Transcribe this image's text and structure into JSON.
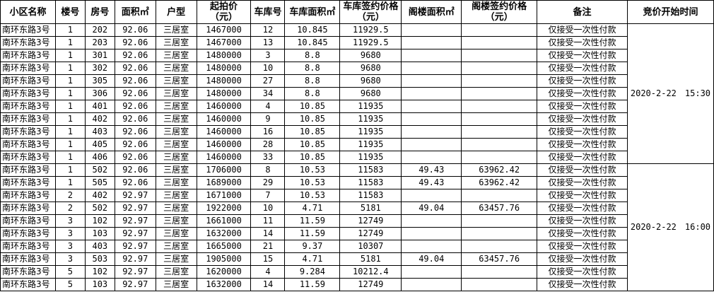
{
  "headers": [
    "小区名称",
    "楼号",
    "房号",
    "面积㎡",
    "户型",
    "起拍价\n（元）",
    "车库号",
    "车库面积㎡",
    "车库签约价格\n（元）",
    "阁楼面积㎡",
    "阁楼签约价格\n（元）",
    "备注",
    "竞价开始时间"
  ],
  "times": [
    "2020-2-22　15:30",
    "2020-2-22　16:00"
  ],
  "rows": [
    [
      "南环东路3号",
      "1",
      "202",
      "92.06",
      "三居室",
      "1467000",
      "12",
      "10.845",
      "11929.5",
      "",
      "",
      "仅接受一次性付款"
    ],
    [
      "南环东路3号",
      "1",
      "203",
      "92.06",
      "三居室",
      "1467000",
      "13",
      "10.845",
      "11929.5",
      "",
      "",
      "仅接受一次性付款"
    ],
    [
      "南环东路3号",
      "1",
      "301",
      "92.06",
      "三居室",
      "1480000",
      "3",
      "8.8",
      "9680",
      "",
      "",
      "仅接受一次性付款"
    ],
    [
      "南环东路3号",
      "1",
      "302",
      "92.06",
      "三居室",
      "1480000",
      "10",
      "8.8",
      "9680",
      "",
      "",
      "仅接受一次性付款"
    ],
    [
      "南环东路3号",
      "1",
      "305",
      "92.06",
      "三居室",
      "1480000",
      "27",
      "8.8",
      "9680",
      "",
      "",
      "仅接受一次性付款"
    ],
    [
      "南环东路3号",
      "1",
      "306",
      "92.06",
      "三居室",
      "1480000",
      "34",
      "8.8",
      "9680",
      "",
      "",
      "仅接受一次性付款"
    ],
    [
      "南环东路3号",
      "1",
      "401",
      "92.06",
      "三居室",
      "1460000",
      "4",
      "10.85",
      "11935",
      "",
      "",
      "仅接受一次性付款"
    ],
    [
      "南环东路3号",
      "1",
      "402",
      "92.06",
      "三居室",
      "1460000",
      "9",
      "10.85",
      "11935",
      "",
      "",
      "仅接受一次性付款"
    ],
    [
      "南环东路3号",
      "1",
      "403",
      "92.06",
      "三居室",
      "1460000",
      "16",
      "10.85",
      "11935",
      "",
      "",
      "仅接受一次性付款"
    ],
    [
      "南环东路3号",
      "1",
      "405",
      "92.06",
      "三居室",
      "1460000",
      "28",
      "10.85",
      "11935",
      "",
      "",
      "仅接受一次性付款"
    ],
    [
      "南环东路3号",
      "1",
      "406",
      "92.06",
      "三居室",
      "1460000",
      "33",
      "10.85",
      "11935",
      "",
      "",
      "仅接受一次性付款"
    ],
    [
      "南环东路3号",
      "1",
      "502",
      "92.06",
      "三居室",
      "1706000",
      "8",
      "10.53",
      "11583",
      "49.43",
      "63962.42",
      "仅接受一次性付款"
    ],
    [
      "南环东路3号",
      "1",
      "505",
      "92.06",
      "三居室",
      "1689000",
      "29",
      "10.53",
      "11583",
      "49.43",
      "63962.42",
      "仅接受一次性付款"
    ],
    [
      "南环东路3号",
      "2",
      "402",
      "92.97",
      "三居室",
      "1671000",
      "7",
      "10.53",
      "11583",
      "",
      "",
      "仅接受一次性付款"
    ],
    [
      "南环东路3号",
      "2",
      "502",
      "92.97",
      "三居室",
      "1922000",
      "10",
      "4.71",
      "5181",
      "49.04",
      "63457.76",
      "仅接受一次性付款"
    ],
    [
      "南环东路3号",
      "3",
      "102",
      "92.97",
      "三居室",
      "1661000",
      "11",
      "11.59",
      "12749",
      "",
      "",
      "仅接受一次性付款"
    ],
    [
      "南环东路3号",
      "3",
      "103",
      "92.97",
      "三居室",
      "1632000",
      "14",
      "11.59",
      "12749",
      "",
      "",
      "仅接受一次性付款"
    ],
    [
      "南环东路3号",
      "3",
      "403",
      "92.97",
      "三居室",
      "1665000",
      "21",
      "9.37",
      "10307",
      "",
      "",
      "仅接受一次性付款"
    ],
    [
      "南环东路3号",
      "3",
      "503",
      "92.97",
      "三居室",
      "1905000",
      "15",
      "4.71",
      "5181",
      "49.04",
      "63457.76",
      "仅接受一次性付款"
    ],
    [
      "南环东路3号",
      "5",
      "102",
      "92.97",
      "三居室",
      "1620000",
      "4",
      "9.284",
      "10212.4",
      "",
      "",
      "仅接受一次性付款"
    ],
    [
      "南环东路3号",
      "5",
      "103",
      "92.97",
      "三居室",
      "1632000",
      "14",
      "11.59",
      "12749",
      "",
      "",
      "仅接受一次性付款"
    ]
  ]
}
